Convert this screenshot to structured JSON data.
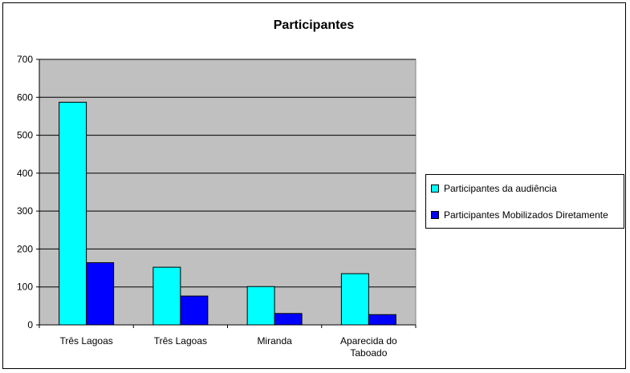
{
  "chart_data": {
    "type": "bar",
    "title": "Participantes",
    "categories": [
      "Três Lagoas",
      "Três Lagoas",
      "Miranda",
      "Aparecida do Taboado"
    ],
    "category_lines": [
      [
        "Três Lagoas"
      ],
      [
        "Três Lagoas"
      ],
      [
        "Miranda"
      ],
      [
        "Aparecida do",
        "Taboado"
      ]
    ],
    "series": [
      {
        "name": "Participantes da audiência",
        "values": [
          587,
          152,
          101,
          135
        ],
        "color": "#00FFFF"
      },
      {
        "name": "Participantes Mobilizados Diretamente",
        "values": [
          164,
          76,
          30,
          27
        ],
        "color": "#0000FF"
      }
    ],
    "xlabel": "",
    "ylabel": "",
    "ylim": [
      0,
      700
    ],
    "yticks": [
      0,
      100,
      200,
      300,
      400,
      500,
      600,
      700
    ],
    "grid": true,
    "plot_background": "#C0C0C0",
    "legend_position": "right"
  }
}
